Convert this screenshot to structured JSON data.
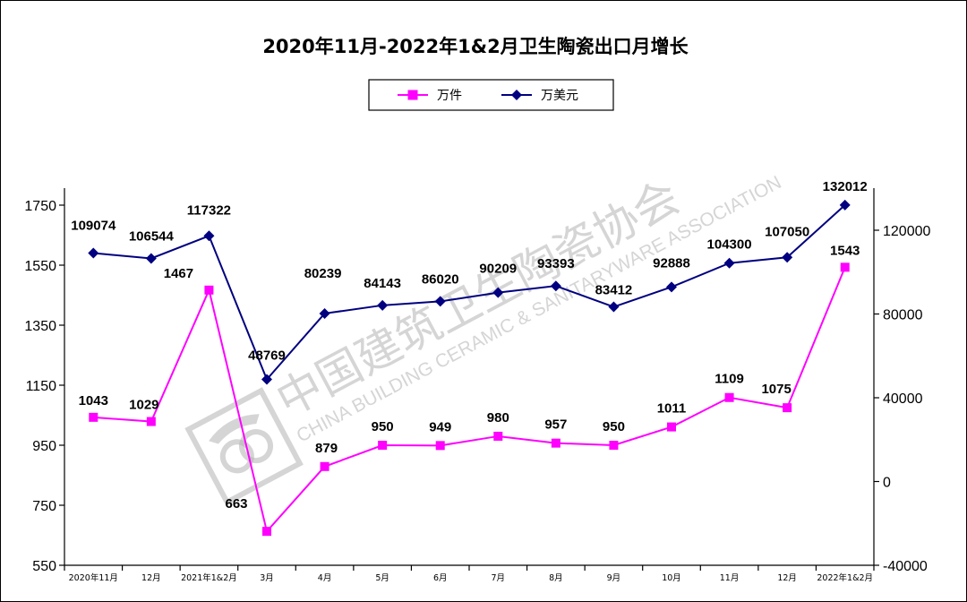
{
  "chart_data": {
    "type": "line",
    "title": "2020年11月-2022年1&2月卫生陶瓷出口月增长",
    "categories": [
      "2020年11月",
      "12月",
      "2021年1&2月",
      "3月",
      "4月",
      "5月",
      "6月",
      "7月",
      "8月",
      "9月",
      "10月",
      "11月",
      "12月",
      "2022年1&2月"
    ],
    "series": [
      {
        "name": "万件",
        "axis": "left",
        "color": "#ff00ff",
        "marker": "square",
        "values": [
          1043,
          1029,
          1467,
          663,
          879,
          950,
          949,
          980,
          957,
          950,
          1011,
          1109,
          1075,
          1543
        ],
        "labels": [
          "1043",
          "1029",
          "1467",
          "663",
          "879",
          "950",
          "949",
          "980",
          "957",
          "950",
          "1011",
          "1109",
          "1075",
          "1543"
        ]
      },
      {
        "name": "万美元",
        "axis": "right",
        "color": "#000080",
        "marker": "diamond",
        "values": [
          109074,
          106544,
          117322,
          48769,
          80239,
          84143,
          86020,
          90209,
          93393,
          83412,
          92888,
          104300,
          107050,
          132012
        ],
        "labels": [
          "109074",
          "106544",
          "117322",
          "48769",
          "80239",
          "84143",
          "86020",
          "90209",
          "93393",
          "83412",
          "92888",
          "104300",
          "107050",
          "132012"
        ]
      }
    ],
    "left_axis": {
      "min": 550,
      "max": 1750,
      "ticks": [
        "550",
        "750",
        "950",
        "1150",
        "1350",
        "1550",
        "1750"
      ]
    },
    "right_axis": {
      "min": -40000,
      "max": 120000,
      "ticks": [
        "-40000",
        "0",
        "40000",
        "80000",
        "120000"
      ]
    },
    "grid": false,
    "legend_position": "top-center"
  },
  "watermark": {
    "chinese": "中国建筑卫生陶瓷协会",
    "english": "CHINA BUILDING CERAMIC & SANITARYWARE ASSOCIATION",
    "logo_icon": "association-logo-icon"
  }
}
